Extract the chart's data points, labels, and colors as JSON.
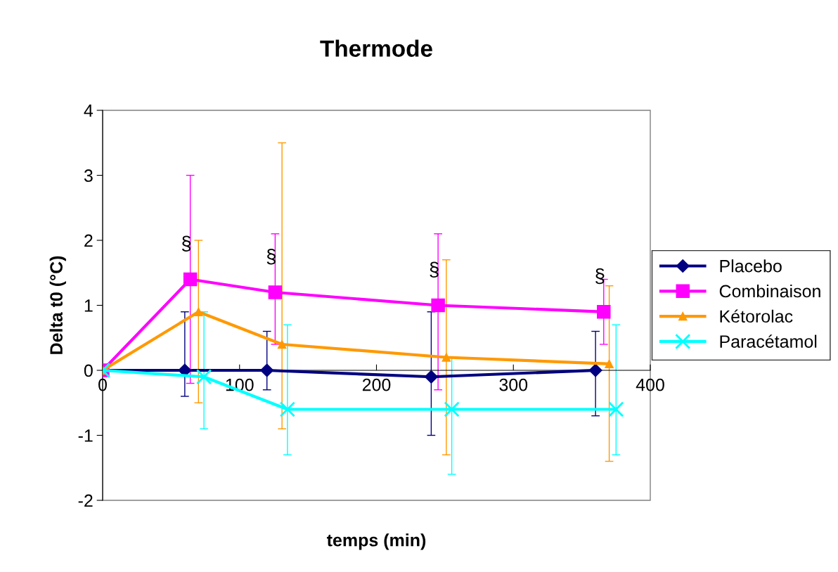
{
  "chart_data": {
    "type": "line",
    "title": "Thermode",
    "xlabel": "temps (min)",
    "ylabel": "Delta t0 (°C)",
    "xlim": [
      0,
      400
    ],
    "xticks": [
      0,
      100,
      200,
      300,
      400
    ],
    "ylim": [
      -2,
      4
    ],
    "yticks": [
      -2,
      -1,
      0,
      1,
      2,
      3,
      4
    ],
    "grid": false,
    "legend": "right",
    "line_style": "solid",
    "series": [
      {
        "name": "Placebo",
        "color": "#000080",
        "marker": "diamond",
        "x": [
          0,
          60,
          120,
          240,
          360
        ],
        "values": [
          0,
          0,
          0,
          -0.1,
          0
        ],
        "errors": [
          null,
          [
            -0.4,
            0.9
          ],
          [
            -0.3,
            0.6
          ],
          [
            -1.0,
            0.9
          ],
          [
            -0.7,
            0.6
          ]
        ]
      },
      {
        "name": "Combinaison",
        "color": "#ff00ff",
        "marker": "square",
        "x": [
          0,
          64,
          126,
          245,
          366
        ],
        "values": [
          0,
          1.4,
          1.2,
          1.0,
          0.9
        ],
        "errors": [
          null,
          [
            -0.2,
            3.0
          ],
          [
            0.4,
            2.1
          ],
          [
            -0.3,
            2.1
          ],
          [
            0.4,
            1.4
          ]
        ]
      },
      {
        "name": "Kétorolac",
        "color": "#ff9900",
        "marker": "triangle",
        "x": [
          0,
          70,
          131,
          251,
          370
        ],
        "values": [
          0,
          0.9,
          0.4,
          0.2,
          0.1
        ],
        "errors": [
          null,
          [
            -0.5,
            2.0
          ],
          [
            -0.9,
            3.5
          ],
          [
            -1.3,
            1.7
          ],
          [
            -1.4,
            1.3
          ]
        ]
      },
      {
        "name": "Paracétamol",
        "color": "#00ffff",
        "marker": "cross",
        "x": [
          0,
          74,
          135,
          255,
          375
        ],
        "values": [
          0,
          -0.1,
          -0.6,
          -0.6,
          -0.6
        ],
        "errors": [
          null,
          [
            -0.9,
            0.9
          ],
          [
            -1.3,
            0.7
          ],
          [
            -1.6,
            0.2
          ],
          [
            -1.3,
            0.7
          ]
        ]
      }
    ],
    "annotations": [
      {
        "text": "§",
        "x": 64,
        "y": 1.4
      },
      {
        "text": "§",
        "x": 126,
        "y": 1.2
      },
      {
        "text": "§",
        "x": 245,
        "y": 1.0
      },
      {
        "text": "§",
        "x": 366,
        "y": 0.9
      }
    ]
  }
}
